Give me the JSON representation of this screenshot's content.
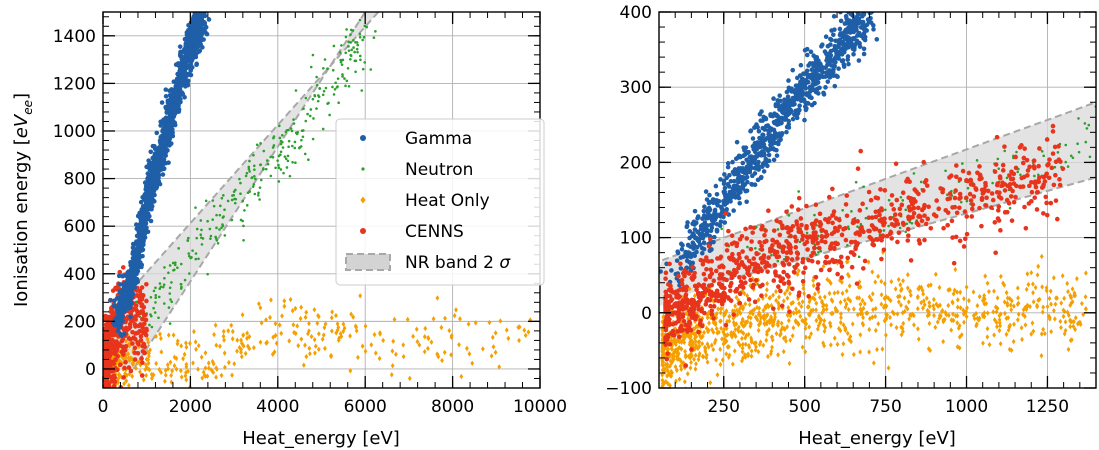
{
  "chart_data": [
    {
      "type": "scatter",
      "title": "",
      "xlabel": "Heat_energy [eV]",
      "ylabel_main": "Ionisation energy [",
      "ylabel_var": "eV",
      "ylabel_sub": "ee",
      "ylabel_end": "]",
      "xlim": [
        0,
        10000
      ],
      "ylim": [
        -80,
        1500
      ],
      "xticks": [
        0,
        2000,
        4000,
        6000,
        8000,
        10000
      ],
      "xtick_labels": [
        "0",
        "2000",
        "4000",
        "6000",
        "8000",
        "10000"
      ],
      "yticks": [
        0,
        200,
        400,
        600,
        800,
        1000,
        1200,
        1400
      ],
      "ytick_labels": [
        "0",
        "200",
        "400",
        "600",
        "800",
        "1000",
        "1200",
        "1400"
      ],
      "grid": true,
      "legend": {
        "placement": "center-right",
        "entries": [
          {
            "label": "Gamma",
            "color": "#1f5fa8",
            "marker": "circle"
          },
          {
            "label": "Neutron",
            "color": "#2ca02c",
            "marker": "small-circle"
          },
          {
            "label": "Heat Only",
            "color": "#f5a000",
            "marker": "diamond"
          },
          {
            "label": "CENNS",
            "color": "#e8341c",
            "marker": "circle"
          },
          {
            "label": "NR band 2 σ",
            "color": "#d3d3d3",
            "marker": "band"
          }
        ]
      },
      "band": {
        "lower": [
          [
            700,
            0
          ],
          [
            6000,
            1500
          ]
        ],
        "upper": [
          [
            0,
            200
          ],
          [
            6300,
            1500
          ]
        ]
      },
      "series": [
        {
          "name": "Gamma",
          "color": "#1f5fa8",
          "shape": "band",
          "count": 1400,
          "points": [
            [
              300,
              200
            ],
            [
              700,
              400
            ],
            [
              1000,
              700
            ],
            [
              1300,
              900
            ],
            [
              1600,
              1100
            ],
            [
              1900,
              1300
            ],
            [
              2300,
              1500
            ]
          ]
        },
        {
          "name": "Neutron",
          "color": "#2ca02c",
          "shape": "band",
          "count": 300,
          "points": [
            [
              1000,
              200
            ],
            [
              2000,
              500
            ],
            [
              3000,
              700
            ],
            [
              4000,
              900
            ],
            [
              5000,
              1150
            ],
            [
              6000,
              1400
            ]
          ]
        },
        {
          "name": "Heat Only",
          "color": "#f5a000",
          "shape": "cloud",
          "count": 520,
          "points": [
            [
              100,
              0
            ],
            [
              500,
              50
            ],
            [
              1000,
              30
            ],
            [
              2000,
              20
            ],
            [
              4200,
              180
            ],
            [
              7000,
              100
            ],
            [
              9800,
              170
            ]
          ]
        },
        {
          "name": "CENNS",
          "color": "#e8341c",
          "shape": "cloud",
          "count": 500,
          "points": [
            [
              50,
              0
            ],
            [
              200,
              100
            ],
            [
              400,
              200
            ],
            [
              700,
              250
            ],
            [
              1000,
              150
            ]
          ]
        }
      ]
    },
    {
      "type": "scatter",
      "title": "",
      "xlabel": "Heat_energy [eV]",
      "ylabel": "",
      "xlim": [
        50,
        1400
      ],
      "ylim": [
        -100,
        400
      ],
      "xticks": [
        250,
        500,
        750,
        1000,
        1250
      ],
      "xtick_labels": [
        "250",
        "500",
        "750",
        "1000",
        "1250"
      ],
      "yticks": [
        -100,
        0,
        100,
        200,
        300,
        400
      ],
      "ytick_labels": [
        "−100",
        "0",
        "100",
        "200",
        "300",
        "400"
      ],
      "grid": true,
      "band": {
        "lower": [
          [
            230,
            40
          ],
          [
            1400,
            180
          ]
        ],
        "upper": [
          [
            60,
            70
          ],
          [
            1400,
            280
          ]
        ]
      },
      "series": [
        {
          "name": "Gamma",
          "color": "#1f5fa8",
          "shape": "band",
          "count": 900,
          "points": [
            [
              100,
              50
            ],
            [
              200,
              120
            ],
            [
              300,
              180
            ],
            [
              400,
              240
            ],
            [
              500,
              300
            ],
            [
              600,
              350
            ],
            [
              700,
              400
            ]
          ]
        },
        {
          "name": "Neutron",
          "color": "#2ca02c",
          "shape": "band",
          "count": 170,
          "points": [
            [
              250,
              60
            ],
            [
              500,
              100
            ],
            [
              750,
              130
            ],
            [
              1000,
              170
            ],
            [
              1250,
              200
            ],
            [
              1400,
              230
            ]
          ]
        },
        {
          "name": "Heat Only",
          "color": "#f5a000",
          "shape": "cloud",
          "count": 1100,
          "points": [
            [
              60,
              -50
            ],
            [
              250,
              -20
            ],
            [
              500,
              0
            ],
            [
              750,
              10
            ],
            [
              1000,
              0
            ],
            [
              1250,
              10
            ],
            [
              1370,
              0
            ]
          ]
        },
        {
          "name": "CENNS",
          "color": "#e8341c",
          "shape": "cloud",
          "count": 950,
          "points": [
            [
              70,
              0
            ],
            [
              150,
              20
            ],
            [
              250,
              40
            ],
            [
              400,
              70
            ],
            [
              600,
              100
            ],
            [
              800,
              130
            ],
            [
              1300,
              190
            ]
          ]
        }
      ]
    }
  ]
}
